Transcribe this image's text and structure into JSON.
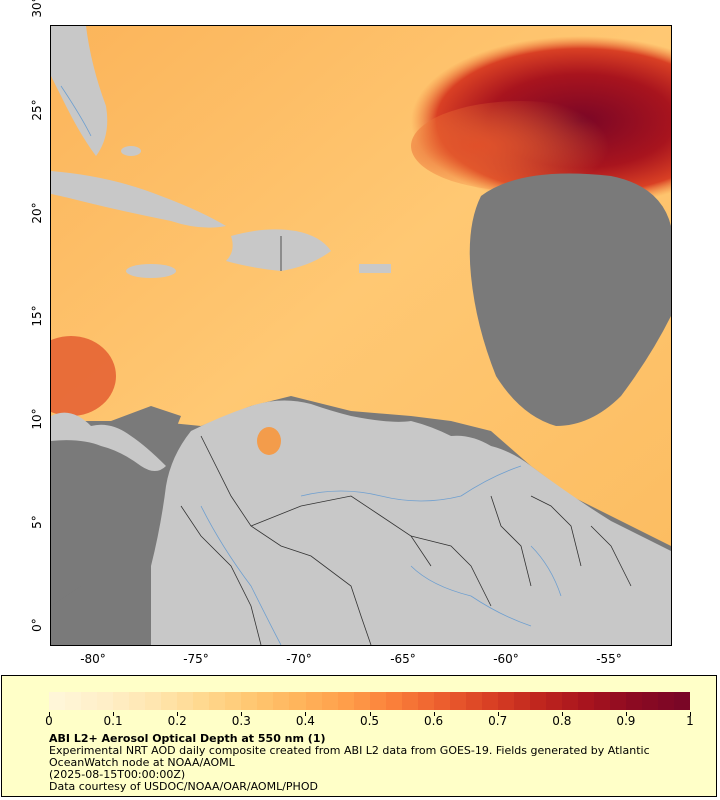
{
  "map": {
    "y_axis_labels": [
      "30°",
      "25°",
      "20°",
      "15°",
      "10°",
      "5°",
      "0°"
    ],
    "x_axis_labels": [
      "-80°",
      "-75°",
      "-70°",
      "-65°",
      "-60°",
      "-55°"
    ],
    "colors": {
      "land": "#c8c8c8",
      "no_data": "#7a7a7a",
      "rivers": "#6e9fd0",
      "borders": "#333333"
    }
  },
  "legend": {
    "title": "ABI L2+ Aerosol Optical Depth at 550 nm (1)",
    "description_line1": "Experimental NRT AOD daily composite created from ABI L2 data from GOES-19. Fields generated by Atlantic",
    "description_line2": "OceanWatch node at NOAA/AOML",
    "timestamp": "(2025-08-15T00:00:00Z)",
    "credit": "Data courtesy of USDOC/NOAA/OAR/AOML/PHOD",
    "scale_labels": [
      "0",
      "0.1",
      "0.2",
      "0.3",
      "0.4",
      "0.5",
      "0.6",
      "0.7",
      "0.8",
      "0.9",
      "1"
    ],
    "colorbar_colors": [
      "#fff6d8",
      "#ffefc8",
      "#ffe6b0",
      "#ffd990",
      "#ffc873",
      "#ffb55c",
      "#ff9e4a",
      "#fa7f3a",
      "#ec5e2e",
      "#d94024",
      "#c0261e",
      "#a8141e",
      "#8c0a22",
      "#7a0626"
    ]
  }
}
